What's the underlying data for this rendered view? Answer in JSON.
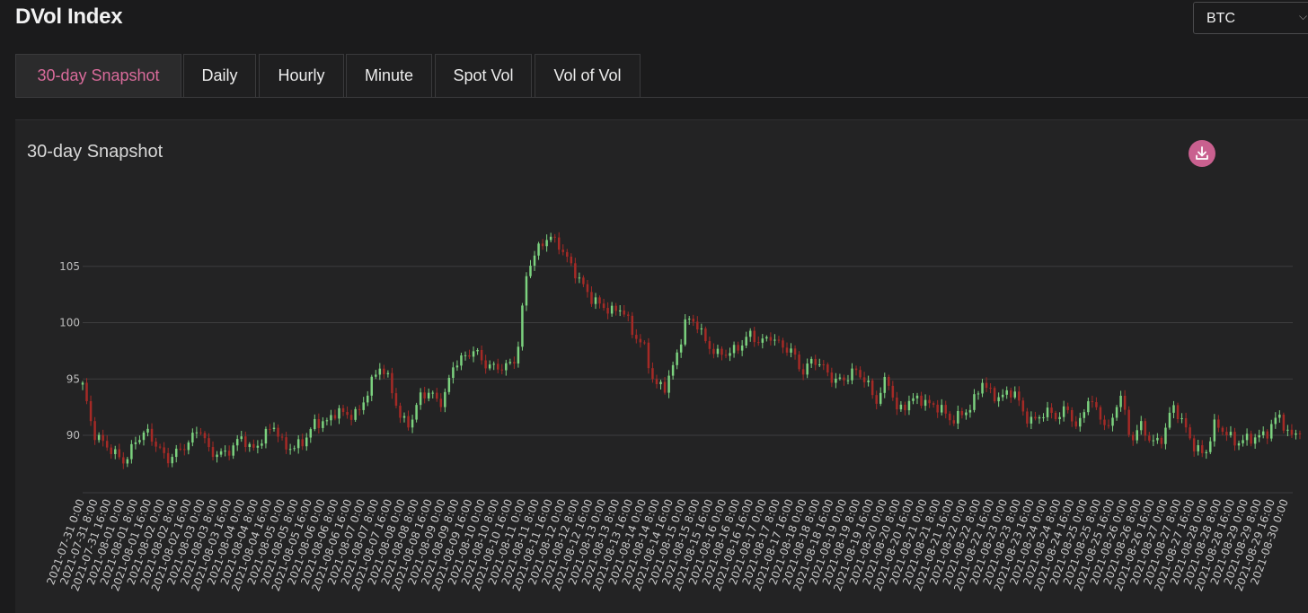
{
  "header": {
    "title": "DVol Index"
  },
  "asset_select": {
    "value": "BTC",
    "chevron": "⌵"
  },
  "tabs": [
    {
      "label": "30-day Snapshot",
      "active": true
    },
    {
      "label": "Daily",
      "active": false
    },
    {
      "label": "Hourly",
      "active": false
    },
    {
      "label": "Minute",
      "active": false
    },
    {
      "label": "Spot Vol",
      "active": false
    },
    {
      "label": "Vol of Vol",
      "active": false
    }
  ],
  "panel": {
    "title": "30-day Snapshot",
    "download_icon": "download-icon"
  },
  "colors": {
    "accent": "#d96b9b",
    "up": "#7cd27f",
    "down": "#a52a26",
    "grid": "#3d3d3f"
  },
  "chart_data": {
    "type": "candlestick",
    "title": "30-day Snapshot",
    "xlabel": "",
    "ylabel": "",
    "ylim": [
      85.3,
      110
    ],
    "yticks": [
      90,
      95,
      100,
      105
    ],
    "grid": true,
    "x_tick_labels": [
      "2021-07-31  0:00",
      "2021-07-31  8:00",
      "2021-07-31 16:00",
      "2021-08-01  0:00",
      "2021-08-01  8:00",
      "2021-08-01 16:00",
      "2021-08-02  0:00",
      "2021-08-02  8:00",
      "2021-08-02 16:00",
      "2021-08-03  0:00",
      "2021-08-03  8:00",
      "2021-08-03 16:00",
      "2021-08-04  0:00",
      "2021-08-04  8:00",
      "2021-08-04 16:00",
      "2021-08-05  0:00",
      "2021-08-05  8:00",
      "2021-08-05 16:00",
      "2021-08-06  0:00",
      "2021-08-06  8:00",
      "2021-08-06 16:00",
      "2021-08-07  0:00",
      "2021-08-07  8:00",
      "2021-08-07 16:00",
      "2021-08-08  0:00",
      "2021-08-08  8:00",
      "2021-08-08 16:00",
      "2021-08-09  0:00",
      "2021-08-09  8:00",
      "2021-08-09 16:00",
      "2021-08-10  0:00",
      "2021-08-10  8:00",
      "2021-08-10 16:00",
      "2021-08-11  0:00",
      "2021-08-11  8:00",
      "2021-08-11 16:00",
      "2021-08-12  0:00",
      "2021-08-12  8:00",
      "2021-08-12 16:00",
      "2021-08-13  0:00",
      "2021-08-13  8:00",
      "2021-08-13 16:00",
      "2021-08-14  0:00",
      "2021-08-14  8:00",
      "2021-08-14 16:00",
      "2021-08-15  0:00",
      "2021-08-15  8:00",
      "2021-08-15 16:00",
      "2021-08-16  0:00",
      "2021-08-16  8:00",
      "2021-08-16 16:00",
      "2021-08-17  0:00",
      "2021-08-17  8:00",
      "2021-08-17 16:00",
      "2021-08-18  0:00",
      "2021-08-18  8:00",
      "2021-08-18 16:00",
      "2021-08-19  0:00",
      "2021-08-19  8:00",
      "2021-08-19 16:00",
      "2021-08-20  0:00",
      "2021-08-20  8:00",
      "2021-08-20 16:00",
      "2021-08-21  0:00",
      "2021-08-21  8:00",
      "2021-08-21 16:00",
      "2021-08-22  0:00",
      "2021-08-22  8:00",
      "2021-08-22 16:00",
      "2021-08-23  0:00",
      "2021-08-23  8:00",
      "2021-08-23 16:00",
      "2021-08-24  0:00",
      "2021-08-24  8:00",
      "2021-08-24 16:00",
      "2021-08-25  0:00",
      "2021-08-25  8:00",
      "2021-08-25 16:00",
      "2021-08-26  0:00",
      "2021-08-26  8:00",
      "2021-08-26 16:00",
      "2021-08-27  0:00",
      "2021-08-27  8:00",
      "2021-08-27 16:00",
      "2021-08-28  0:00",
      "2021-08-28  8:00",
      "2021-08-28 16:00",
      "2021-08-29  0:00",
      "2021-08-29  8:00",
      "2021-08-29 16:00",
      "2021-08-30  0:00"
    ],
    "close_series": [
      94.5,
      90.2,
      89.3,
      88.4,
      87.6,
      89.5,
      90.4,
      89.1,
      87.8,
      88.6,
      89.3,
      90.8,
      88.5,
      88.3,
      88.7,
      89.9,
      88.6,
      89.7,
      91.0,
      89.0,
      88.9,
      89.6,
      91.2,
      91.1,
      92.2,
      91.8,
      91.9,
      94.0,
      96.2,
      94.8,
      91.5,
      91.0,
      93.8,
      93.6,
      92.8,
      96.2,
      96.9,
      97.6,
      96.3,
      96.0,
      96.1,
      96.8,
      104.8,
      106.5,
      107.7,
      106.9,
      105.3,
      103.7,
      102.2,
      101.5,
      101.0,
      101.3,
      99.0,
      98.0,
      94.5,
      94.3,
      96.6,
      100.3,
      100.0,
      98.0,
      97.2,
      97.3,
      97.8,
      99.0,
      98.2,
      98.8,
      97.9,
      97.5,
      95.5,
      96.8,
      96.0,
      94.8,
      95.0,
      95.8,
      94.8,
      93.0,
      95.2,
      92.0,
      93.0,
      93.3,
      92.7,
      92.5,
      91.3,
      91.8,
      92.6,
      94.8,
      93.4,
      93.5,
      94.0,
      91.6,
      91.3,
      92.2,
      91.6,
      92.4,
      90.5,
      93.3,
      91.9,
      90.4,
      93.9,
      89.5,
      90.9,
      89.3,
      89.7,
      92.7,
      91.0,
      89.0,
      88.2,
      91.1,
      90.2,
      89.3,
      89.7,
      89.8,
      90.3,
      91.9,
      89.8,
      90.5
    ]
  }
}
